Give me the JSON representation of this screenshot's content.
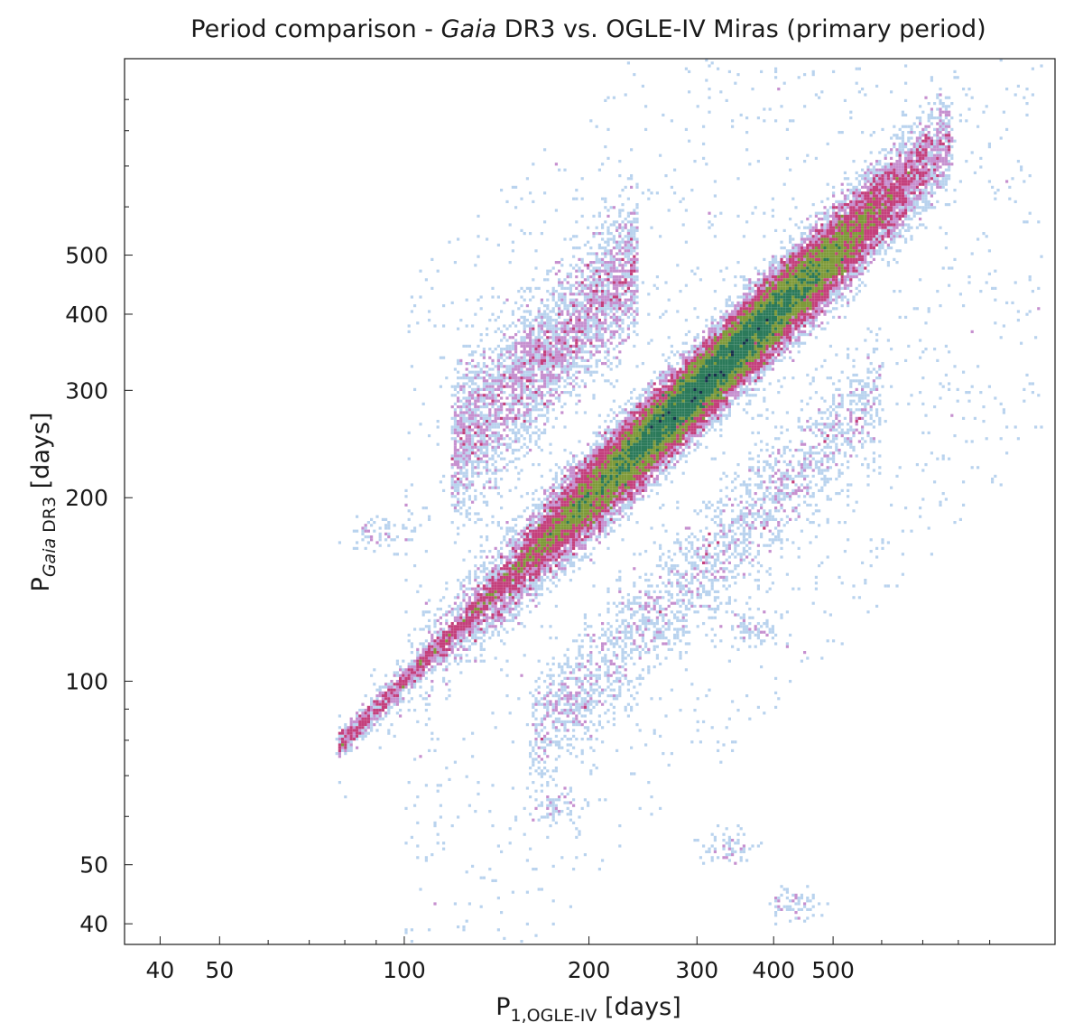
{
  "chart_data": {
    "type": "heatmap",
    "title": {
      "before": "Period comparison - ",
      "italic": "Gaia",
      "after": " DR3 vs. OGLE-IV Miras (primary period)"
    },
    "xlabel": {
      "main": "P",
      "sub": "1,OGLE-IV",
      "unit": " [days]"
    },
    "ylabel": {
      "main": "P",
      "sub_italic": "Gaia",
      "sub": " DR3",
      "unit": " [days]"
    },
    "x_scale": "log",
    "y_scale": "log",
    "xlim": [
      35,
      1150
    ],
    "ylim": [
      37,
      1050
    ],
    "x_ticks": [
      40,
      50,
      100,
      200,
      300,
      400,
      500
    ],
    "x_tick_labels": [
      "40",
      "50",
      "100",
      "200",
      "300",
      "400",
      "500"
    ],
    "y_ticks": [
      40,
      50,
      100,
      200,
      300,
      400,
      500
    ],
    "y_tick_labels": [
      "40",
      "50",
      "100",
      "200",
      "300",
      "400",
      "500"
    ],
    "grid": false,
    "colormap": [
      "#b9d3ee",
      "#c690cf",
      "#c4407c",
      "#7f9a3a",
      "#2c7a5a",
      "#1a2f4e",
      "#0a0a14"
    ],
    "relations": [
      {
        "name": "1:1",
        "slope": 1.0,
        "x_range": [
          78,
          780
        ],
        "scatter": 0.03,
        "weight": 1.0
      },
      {
        "name": "upper",
        "slope": 2.0,
        "x_range": [
          120,
          240
        ],
        "scatter": 0.06,
        "weight": 0.08
      },
      {
        "name": "lower",
        "slope": 0.5,
        "x_range": [
          160,
          600
        ],
        "scatter": 0.05,
        "weight": 0.05
      }
    ],
    "clumps": [
      {
        "x": 185,
        "y": 92
      },
      {
        "x": 370,
        "y": 122
      },
      {
        "x": 180,
        "y": 62
      },
      {
        "x": 430,
        "y": 43
      },
      {
        "x": 340,
        "y": 53
      },
      {
        "x": 90,
        "y": 175
      },
      {
        "x": 165,
        "y": 345
      }
    ]
  }
}
